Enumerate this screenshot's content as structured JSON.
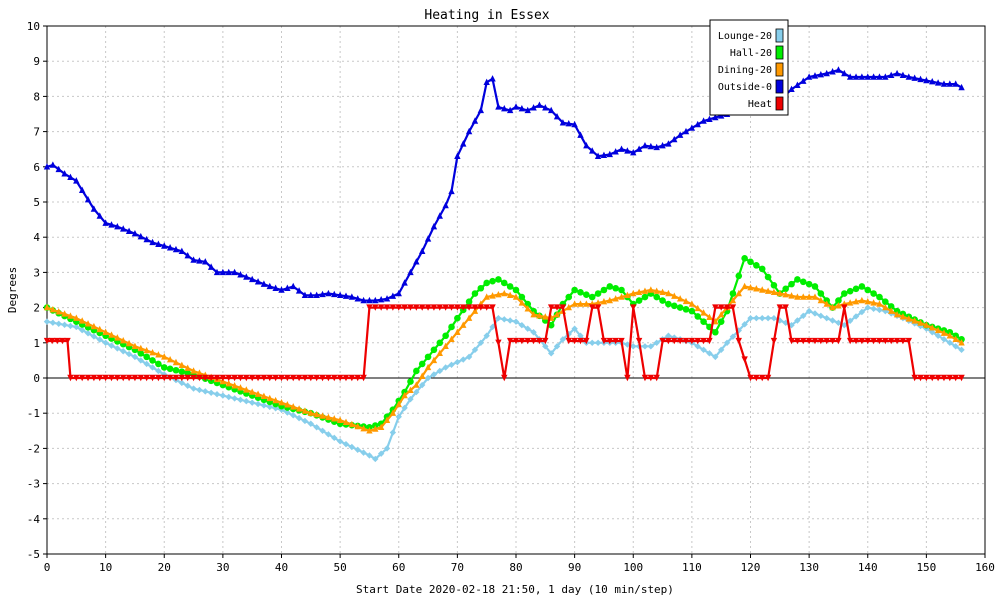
{
  "chart_data": {
    "type": "line",
    "title": "Heating in Essex",
    "xlabel": "Start Date 2020-02-18 21:50, 1 day (10 min/step)",
    "ylabel": "Degrees",
    "xlim": [
      0,
      160
    ],
    "ylim": [
      -5,
      10
    ],
    "xticks": [
      0,
      10,
      20,
      30,
      40,
      50,
      60,
      70,
      80,
      90,
      100,
      110,
      120,
      130,
      140,
      150,
      160
    ],
    "yticks": [
      -5,
      -4,
      -3,
      -2,
      -1,
      0,
      1,
      2,
      3,
      4,
      5,
      6,
      7,
      8,
      9,
      10
    ],
    "grid": true,
    "legend_position": "top-right",
    "zero_line": true,
    "series": [
      {
        "name": "Lounge-20",
        "color": "#87ceeb",
        "marker": "diamond",
        "points": [
          [
            0,
            1.6
          ],
          [
            5,
            1.45
          ],
          [
            10,
            1.0
          ],
          [
            15,
            0.6
          ],
          [
            20,
            0.1
          ],
          [
            25,
            -0.3
          ],
          [
            30,
            -0.5
          ],
          [
            35,
            -0.7
          ],
          [
            40,
            -0.9
          ],
          [
            45,
            -1.3
          ],
          [
            50,
            -1.8
          ],
          [
            55,
            -2.2
          ],
          [
            56,
            -2.3
          ],
          [
            58,
            -2.0
          ],
          [
            60,
            -1.1
          ],
          [
            62,
            -0.6
          ],
          [
            65,
            0.0
          ],
          [
            68,
            0.3
          ],
          [
            72,
            0.6
          ],
          [
            75,
            1.2
          ],
          [
            77,
            1.7
          ],
          [
            80,
            1.6
          ],
          [
            83,
            1.3
          ],
          [
            86,
            0.7
          ],
          [
            88,
            1.1
          ],
          [
            90,
            1.4
          ],
          [
            92,
            1.0
          ],
          [
            95,
            1.0
          ],
          [
            98,
            1.0
          ],
          [
            100,
            0.9
          ],
          [
            103,
            0.9
          ],
          [
            106,
            1.2
          ],
          [
            110,
            1.0
          ],
          [
            114,
            0.6
          ],
          [
            116,
            1.0
          ],
          [
            120,
            1.7
          ],
          [
            124,
            1.7
          ],
          [
            127,
            1.5
          ],
          [
            130,
            1.9
          ],
          [
            133,
            1.7
          ],
          [
            136,
            1.5
          ],
          [
            140,
            2.0
          ],
          [
            143,
            1.9
          ],
          [
            146,
            1.7
          ],
          [
            150,
            1.4
          ],
          [
            154,
            1.0
          ],
          [
            156,
            0.8
          ]
        ]
      },
      {
        "name": "Hall-20",
        "color": "#00ee00",
        "marker": "circle",
        "points": [
          [
            0,
            2.0
          ],
          [
            5,
            1.6
          ],
          [
            10,
            1.2
          ],
          [
            15,
            0.8
          ],
          [
            20,
            0.3
          ],
          [
            25,
            0.1
          ],
          [
            30,
            -0.2
          ],
          [
            35,
            -0.5
          ],
          [
            40,
            -0.8
          ],
          [
            45,
            -1.0
          ],
          [
            50,
            -1.3
          ],
          [
            55,
            -1.4
          ],
          [
            57,
            -1.3
          ],
          [
            59,
            -0.9
          ],
          [
            61,
            -0.4
          ],
          [
            63,
            0.2
          ],
          [
            65,
            0.6
          ],
          [
            68,
            1.2
          ],
          [
            70,
            1.7
          ],
          [
            73,
            2.4
          ],
          [
            75,
            2.7
          ],
          [
            77,
            2.8
          ],
          [
            80,
            2.5
          ],
          [
            83,
            1.9
          ],
          [
            86,
            1.5
          ],
          [
            88,
            2.1
          ],
          [
            90,
            2.5
          ],
          [
            93,
            2.3
          ],
          [
            96,
            2.6
          ],
          [
            98,
            2.5
          ],
          [
            100,
            2.1
          ],
          [
            103,
            2.4
          ],
          [
            106,
            2.1
          ],
          [
            110,
            1.9
          ],
          [
            114,
            1.3
          ],
          [
            116,
            1.9
          ],
          [
            119,
            3.4
          ],
          [
            122,
            3.1
          ],
          [
            125,
            2.4
          ],
          [
            128,
            2.8
          ],
          [
            131,
            2.6
          ],
          [
            134,
            2.0
          ],
          [
            136,
            2.4
          ],
          [
            139,
            2.6
          ],
          [
            142,
            2.3
          ],
          [
            145,
            1.9
          ],
          [
            150,
            1.5
          ],
          [
            154,
            1.3
          ],
          [
            156,
            1.1
          ]
        ]
      },
      {
        "name": "Dining-20",
        "color": "#ff9900",
        "marker": "triangle",
        "points": [
          [
            0,
            2.0
          ],
          [
            5,
            1.7
          ],
          [
            10,
            1.3
          ],
          [
            15,
            0.9
          ],
          [
            20,
            0.6
          ],
          [
            25,
            0.2
          ],
          [
            30,
            -0.1
          ],
          [
            35,
            -0.4
          ],
          [
            40,
            -0.7
          ],
          [
            45,
            -1.0
          ],
          [
            50,
            -1.2
          ],
          [
            55,
            -1.5
          ],
          [
            57,
            -1.4
          ],
          [
            59,
            -1.0
          ],
          [
            61,
            -0.5
          ],
          [
            63,
            -0.2
          ],
          [
            65,
            0.3
          ],
          [
            68,
            0.9
          ],
          [
            70,
            1.3
          ],
          [
            73,
            1.9
          ],
          [
            75,
            2.3
          ],
          [
            78,
            2.4
          ],
          [
            80,
            2.3
          ],
          [
            83,
            1.8
          ],
          [
            86,
            1.7
          ],
          [
            88,
            1.9
          ],
          [
            90,
            2.1
          ],
          [
            93,
            2.1
          ],
          [
            96,
            2.2
          ],
          [
            98,
            2.3
          ],
          [
            100,
            2.4
          ],
          [
            103,
            2.5
          ],
          [
            106,
            2.4
          ],
          [
            110,
            2.1
          ],
          [
            114,
            1.6
          ],
          [
            116,
            2.0
          ],
          [
            119,
            2.6
          ],
          [
            122,
            2.5
          ],
          [
            125,
            2.4
          ],
          [
            128,
            2.3
          ],
          [
            131,
            2.3
          ],
          [
            134,
            2.0
          ],
          [
            136,
            2.1
          ],
          [
            139,
            2.2
          ],
          [
            142,
            2.1
          ],
          [
            145,
            1.8
          ],
          [
            150,
            1.5
          ],
          [
            154,
            1.2
          ],
          [
            156,
            1.0
          ]
        ]
      },
      {
        "name": "Outside-0",
        "color": "#0000dd",
        "marker": "triangle",
        "points": [
          [
            0,
            6.0
          ],
          [
            1,
            6.05
          ],
          [
            3,
            5.8
          ],
          [
            5,
            5.6
          ],
          [
            8,
            4.8
          ],
          [
            10,
            4.4
          ],
          [
            12,
            4.3
          ],
          [
            15,
            4.1
          ],
          [
            18,
            3.85
          ],
          [
            20,
            3.75
          ],
          [
            23,
            3.6
          ],
          [
            25,
            3.35
          ],
          [
            27,
            3.3
          ],
          [
            29,
            3.0
          ],
          [
            32,
            3.0
          ],
          [
            35,
            2.8
          ],
          [
            38,
            2.6
          ],
          [
            40,
            2.5
          ],
          [
            42,
            2.6
          ],
          [
            44,
            2.35
          ],
          [
            46,
            2.35
          ],
          [
            48,
            2.4
          ],
          [
            50,
            2.35
          ],
          [
            52,
            2.3
          ],
          [
            54,
            2.2
          ],
          [
            56,
            2.2
          ],
          [
            58,
            2.25
          ],
          [
            60,
            2.4
          ],
          [
            62,
            3.0
          ],
          [
            64,
            3.6
          ],
          [
            66,
            4.3
          ],
          [
            68,
            4.9
          ],
          [
            69,
            5.3
          ],
          [
            70,
            6.3
          ],
          [
            72,
            7.0
          ],
          [
            74,
            7.6
          ],
          [
            75,
            8.4
          ],
          [
            76,
            8.5
          ],
          [
            77,
            7.7
          ],
          [
            79,
            7.6
          ],
          [
            80,
            7.7
          ],
          [
            82,
            7.6
          ],
          [
            84,
            7.75
          ],
          [
            86,
            7.6
          ],
          [
            88,
            7.25
          ],
          [
            90,
            7.2
          ],
          [
            92,
            6.6
          ],
          [
            94,
            6.3
          ],
          [
            96,
            6.35
          ],
          [
            98,
            6.5
          ],
          [
            100,
            6.4
          ],
          [
            102,
            6.6
          ],
          [
            104,
            6.55
          ],
          [
            106,
            6.65
          ],
          [
            108,
            6.9
          ],
          [
            110,
            7.1
          ],
          [
            112,
            7.3
          ],
          [
            114,
            7.4
          ],
          [
            125,
            7.9
          ],
          [
            127,
            8.2
          ],
          [
            130,
            8.55
          ],
          [
            133,
            8.65
          ],
          [
            135,
            8.75
          ],
          [
            137,
            8.55
          ],
          [
            140,
            8.55
          ],
          [
            143,
            8.55
          ],
          [
            145,
            8.65
          ],
          [
            147,
            8.55
          ],
          [
            150,
            8.45
          ],
          [
            153,
            8.35
          ],
          [
            155,
            8.35
          ],
          [
            156,
            8.25
          ]
        ]
      },
      {
        "name": "Heat",
        "color": "#ee0000",
        "marker": "triangle-down",
        "points": [
          [
            0,
            1.05
          ],
          [
            3.5,
            1.05
          ],
          [
            4,
            0
          ],
          [
            54,
            0
          ],
          [
            55,
            2.0
          ],
          [
            76,
            2.0
          ],
          [
            78,
            0
          ],
          [
            79,
            1.05
          ],
          [
            85,
            1.05
          ],
          [
            86,
            2.0
          ],
          [
            88,
            2.0
          ],
          [
            89,
            1.05
          ],
          [
            92,
            1.05
          ],
          [
            93,
            2.0
          ],
          [
            94,
            2.0
          ],
          [
            95,
            1.05
          ],
          [
            98,
            1.05
          ],
          [
            99,
            0
          ],
          [
            100,
            2.0
          ],
          [
            101,
            1.05
          ],
          [
            102,
            0
          ],
          [
            104,
            0
          ],
          [
            105,
            1.05
          ],
          [
            113,
            1.05
          ],
          [
            114,
            2.0
          ],
          [
            117,
            2.0
          ],
          [
            118,
            1.05
          ],
          [
            120,
            0
          ],
          [
            123,
            0
          ],
          [
            124,
            1.05
          ],
          [
            125,
            2.0
          ],
          [
            126,
            2.0
          ],
          [
            127,
            1.05
          ],
          [
            135,
            1.05
          ],
          [
            136,
            2.0
          ],
          [
            137,
            1.05
          ],
          [
            147,
            1.05
          ],
          [
            148,
            0
          ],
          [
            156,
            0
          ]
        ]
      }
    ]
  }
}
